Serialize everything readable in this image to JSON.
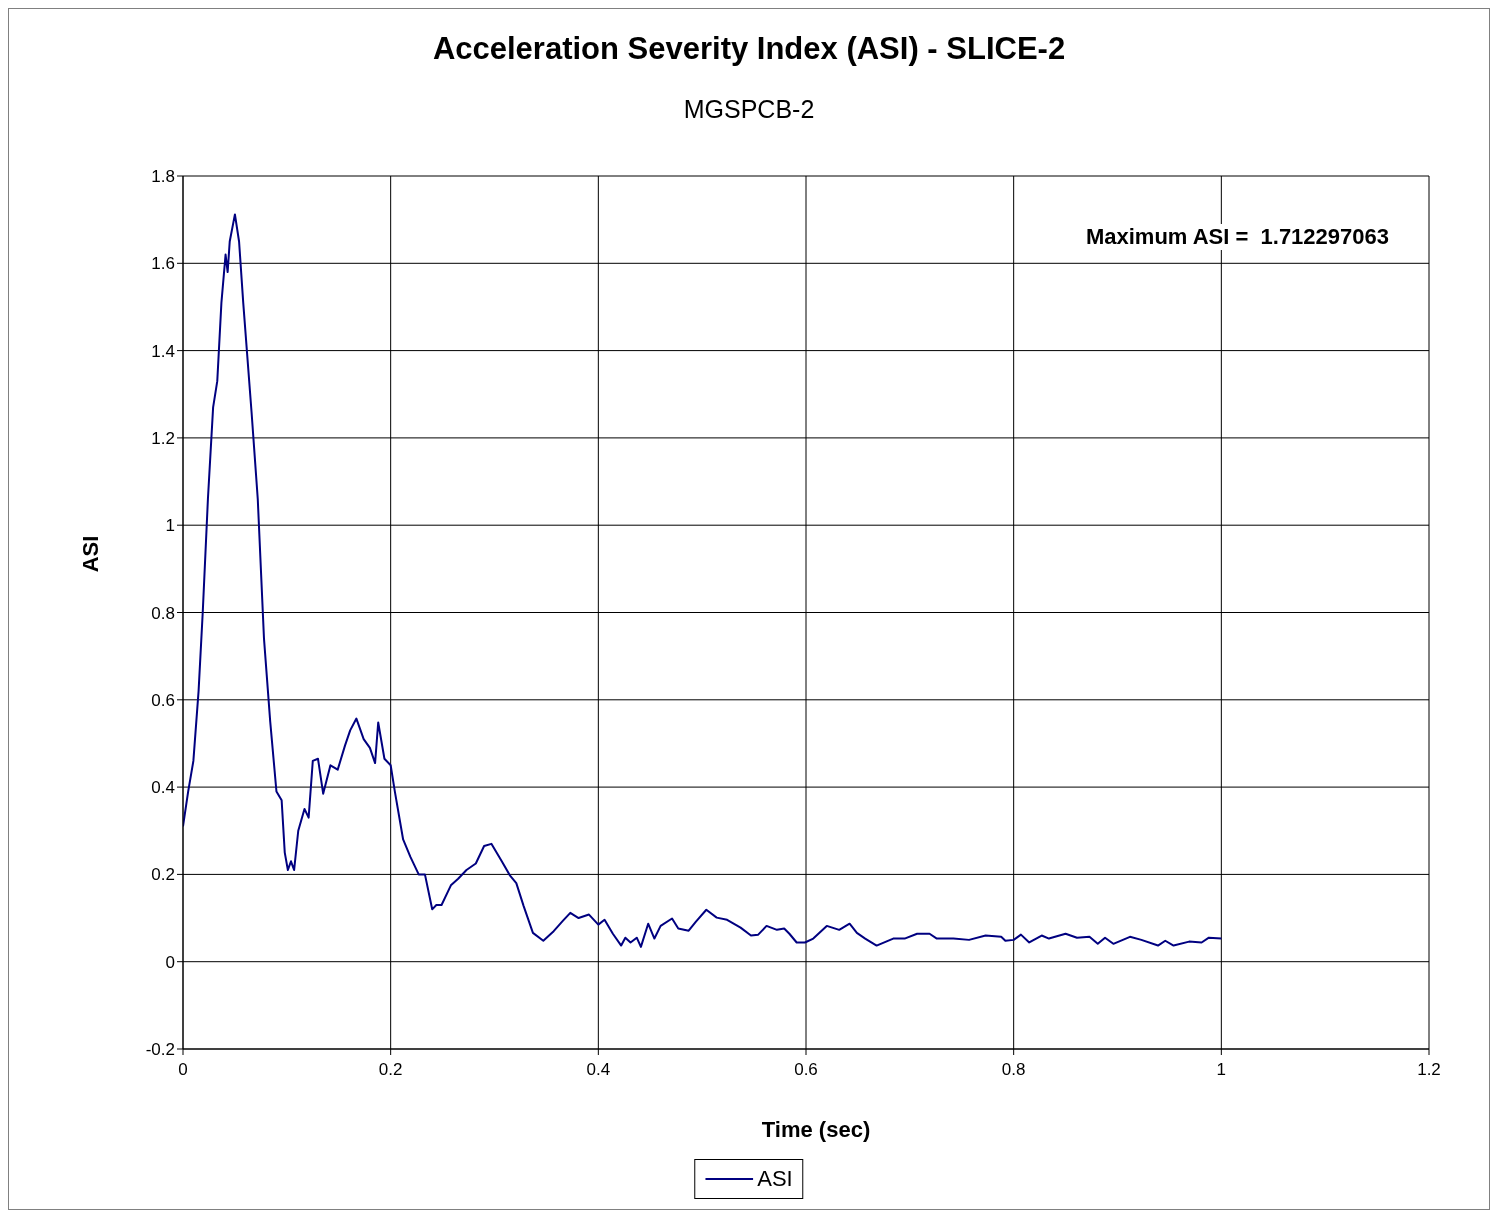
{
  "chart_data": {
    "type": "line",
    "title": "Acceleration Severity Index (ASI) - SLICE-2",
    "subtitle": "MGSPCB-2",
    "xlabel": "Time (sec)",
    "ylabel": "ASI",
    "annotations": [
      "Maximum ASI =  1.712297063"
    ],
    "xlim": [
      0,
      1.2
    ],
    "xticks": [
      0,
      0.2,
      0.4,
      0.6,
      0.8,
      1,
      1.2
    ],
    "ylim": [
      -0.2,
      1.8
    ],
    "yticks": [
      -0.2,
      0,
      0.2,
      0.4,
      0.6,
      0.8,
      1,
      1.2,
      1.4,
      1.6,
      1.8
    ],
    "grid": true,
    "legend": "bottom",
    "marker": "none",
    "line_style": "solid",
    "series": [
      {
        "name": "ASI",
        "color": "#000080",
        "x": [
          0,
          0.005,
          0.01,
          0.015,
          0.019,
          0.024,
          0.029,
          0.033,
          0.037,
          0.041,
          0.043,
          0.045,
          0.05,
          0.054,
          0.058,
          0.066,
          0.072,
          0.078,
          0.084,
          0.09,
          0.095,
          0.098,
          0.101,
          0.104,
          0.107,
          0.111,
          0.117,
          0.121,
          0.125,
          0.13,
          0.135,
          0.142,
          0.149,
          0.156,
          0.161,
          0.167,
          0.174,
          0.18,
          0.185,
          0.188,
          0.194,
          0.2,
          0.204,
          0.212,
          0.219,
          0.227,
          0.233,
          0.24,
          0.244,
          0.249,
          0.258,
          0.265,
          0.273,
          0.282,
          0.29,
          0.297,
          0.307,
          0.315,
          0.321,
          0.328,
          0.337,
          0.347,
          0.357,
          0.366,
          0.373,
          0.381,
          0.391,
          0.4,
          0.406,
          0.414,
          0.422,
          0.426,
          0.431,
          0.437,
          0.441,
          0.448,
          0.454,
          0.46,
          0.471,
          0.477,
          0.487,
          0.494,
          0.504,
          0.514,
          0.524,
          0.537,
          0.547,
          0.554,
          0.562,
          0.572,
          0.579,
          0.584,
          0.591,
          0.599,
          0.607,
          0.62,
          0.632,
          0.642,
          0.649,
          0.657,
          0.668,
          0.684,
          0.695,
          0.707,
          0.719,
          0.726,
          0.742,
          0.757,
          0.773,
          0.788,
          0.792,
          0.8,
          0.807,
          0.815,
          0.827,
          0.834,
          0.85,
          0.861,
          0.873,
          0.881,
          0.888,
          0.896,
          0.912,
          0.923,
          0.939,
          0.946,
          0.954,
          0.969,
          0.981,
          0.988,
          1.0
        ],
        "values": [
          0.31,
          0.39,
          0.46,
          0.62,
          0.8,
          1.06,
          1.27,
          1.33,
          1.51,
          1.62,
          1.58,
          1.65,
          1.712,
          1.65,
          1.51,
          1.26,
          1.06,
          0.74,
          0.55,
          0.39,
          0.37,
          0.25,
          0.21,
          0.23,
          0.21,
          0.3,
          0.35,
          0.33,
          0.46,
          0.465,
          0.385,
          0.45,
          0.44,
          0.495,
          0.53,
          0.557,
          0.51,
          0.49,
          0.455,
          0.548,
          0.465,
          0.45,
          0.39,
          0.28,
          0.24,
          0.2,
          0.2,
          0.12,
          0.13,
          0.13,
          0.175,
          0.19,
          0.21,
          0.225,
          0.265,
          0.27,
          0.23,
          0.197,
          0.18,
          0.128,
          0.066,
          0.048,
          0.07,
          0.094,
          0.112,
          0.1,
          0.108,
          0.085,
          0.096,
          0.064,
          0.037,
          0.055,
          0.044,
          0.055,
          0.034,
          0.087,
          0.053,
          0.082,
          0.099,
          0.076,
          0.071,
          0.092,
          0.119,
          0.101,
          0.096,
          0.078,
          0.06,
          0.062,
          0.082,
          0.073,
          0.076,
          0.064,
          0.044,
          0.044,
          0.053,
          0.082,
          0.073,
          0.087,
          0.066,
          0.053,
          0.037,
          0.053,
          0.053,
          0.064,
          0.064,
          0.053,
          0.053,
          0.05,
          0.06,
          0.057,
          0.048,
          0.05,
          0.062,
          0.044,
          0.06,
          0.053,
          0.064,
          0.055,
          0.057,
          0.041,
          0.055,
          0.041,
          0.057,
          0.05,
          0.037,
          0.048,
          0.037,
          0.046,
          0.044,
          0.055,
          0.053
        ]
      }
    ]
  }
}
